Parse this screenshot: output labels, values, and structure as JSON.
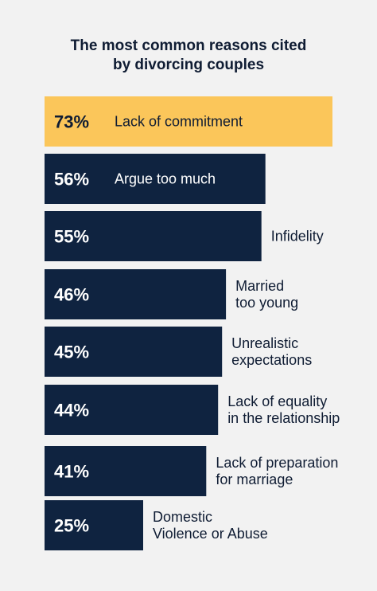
{
  "chart_data": {
    "type": "bar",
    "orientation": "horizontal",
    "title_lines": [
      "The most common reasons cited",
      "by divorcing couples"
    ],
    "categories": [
      [
        "Lack of commitment"
      ],
      [
        "Argue too much"
      ],
      [
        "Infidelity"
      ],
      [
        "Married",
        "too young"
      ],
      [
        "Unrealistic",
        "expectations"
      ],
      [
        "Lack of equality",
        "in the relationship"
      ],
      [
        "Lack of preparation",
        "for marriage"
      ],
      [
        "Domestic",
        "Violence or Abuse"
      ]
    ],
    "values": [
      73,
      56,
      55,
      46,
      45,
      44,
      41,
      25
    ],
    "value_labels": [
      "73%",
      "56%",
      "55%",
      "46%",
      "45%",
      "44%",
      "41%",
      "25%"
    ],
    "highlight_index": 0,
    "colors": {
      "highlight": "#fbc65a",
      "bar": "#0f2340",
      "text_dark": "#0f1c33",
      "text_light": "#ffffff"
    }
  }
}
